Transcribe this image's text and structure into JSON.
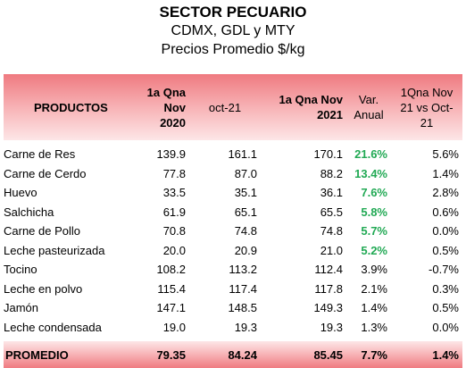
{
  "title": "SECTOR PECUARIO",
  "subtitle": "CDMX, GDL y MTY",
  "subtitle2": "Precios Promedio $/kg",
  "headers": {
    "productos": "PRODUCTOS",
    "col1_line1": "1a Qna Nov",
    "col1_line2": "2020",
    "col2": "oct-21",
    "col3_line1": "1a Qna Nov",
    "col3_line2": "2021",
    "col4_line1": "Var.",
    "col4_line2": "Anual",
    "col5_line1": "1Qna Nov",
    "col5_line2": "21 vs Oct-",
    "col5_line3": "21"
  },
  "rows": [
    {
      "name": "Carne de Res",
      "v2020": "139.9",
      "oct21": "161.1",
      "v2021": "170.1",
      "anual": "21.6%",
      "vsoct": "5.6%",
      "highlight": true
    },
    {
      "name": "Carne de Cerdo",
      "v2020": "77.8",
      "oct21": "87.0",
      "v2021": "88.2",
      "anual": "13.4%",
      "vsoct": "1.4%",
      "highlight": true
    },
    {
      "name": "Huevo",
      "v2020": "33.5",
      "oct21": "35.1",
      "v2021": "36.1",
      "anual": "7.6%",
      "vsoct": "2.8%",
      "highlight": true
    },
    {
      "name": "Salchicha",
      "v2020": "61.9",
      "oct21": "65.1",
      "v2021": "65.5",
      "anual": "5.8%",
      "vsoct": "0.6%",
      "highlight": true
    },
    {
      "name": "Carne de Pollo",
      "v2020": "70.8",
      "oct21": "74.8",
      "v2021": "74.8",
      "anual": "5.7%",
      "vsoct": "0.0%",
      "highlight": true
    },
    {
      "name": "Leche pasteurizada",
      "v2020": "20.0",
      "oct21": "20.9",
      "v2021": "21.0",
      "anual": "5.2%",
      "vsoct": "0.5%",
      "highlight": true
    },
    {
      "name": "Tocino",
      "v2020": "108.2",
      "oct21": "113.2",
      "v2021": "112.4",
      "anual": "3.9%",
      "vsoct": "-0.7%",
      "highlight": false
    },
    {
      "name": "Leche en polvo",
      "v2020": "115.4",
      "oct21": "117.4",
      "v2021": "117.8",
      "anual": "2.1%",
      "vsoct": "0.3%",
      "highlight": false
    },
    {
      "name": "Jamón",
      "v2020": "147.1",
      "oct21": "148.5",
      "v2021": "149.3",
      "anual": "1.4%",
      "vsoct": "0.5%",
      "highlight": false
    },
    {
      "name": "Leche condensada",
      "v2020": "19.0",
      "oct21": "19.3",
      "v2021": "19.3",
      "anual": "1.3%",
      "vsoct": "0.0%",
      "highlight": false
    }
  ],
  "footer": {
    "label": "PROMEDIO",
    "v2020": "79.35",
    "oct21": "84.24",
    "v2021": "85.45",
    "anual": "7.7%",
    "vsoct": "1.4%"
  },
  "colors": {
    "highlight": "#21a954",
    "header_band": "#ef7a80"
  }
}
